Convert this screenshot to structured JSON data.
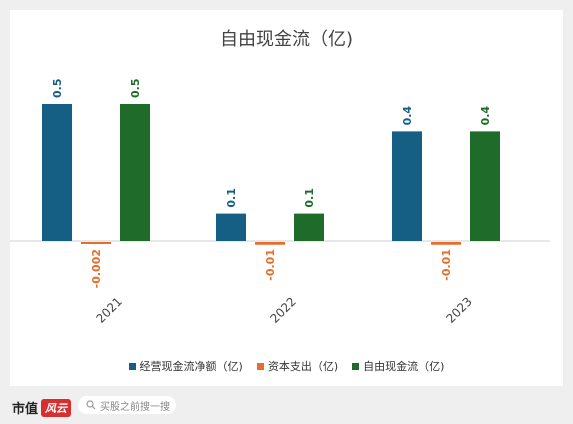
{
  "chart_data": {
    "type": "bar",
    "title": "自由现金流（亿)",
    "categories": [
      "2021",
      "2022",
      "2023"
    ],
    "series": [
      {
        "name": "经营现金流净额（亿)",
        "color": "#155e84",
        "values": [
          0.5,
          0.1,
          0.4
        ],
        "labels": [
          "0.5",
          "0.1",
          "0.4"
        ]
      },
      {
        "name": "资本支出（亿)",
        "color": "#e36e2d",
        "values": [
          -0.002,
          -0.01,
          -0.01
        ],
        "labels": [
          "-0.002",
          "-0.01",
          "-0.01"
        ]
      },
      {
        "name": "自由现金流（亿)",
        "color": "#1e6b2a",
        "values": [
          0.5,
          0.1,
          0.4
        ],
        "labels": [
          "0.5",
          "0.1",
          "0.4"
        ]
      }
    ],
    "label_colors": [
      "#155e84",
      "#e36e2d",
      "#1e6b2a"
    ],
    "grid": false,
    "legend": "bottom"
  },
  "footer": {
    "brand": "市值",
    "brand_mark": "风云",
    "search_placeholder": "买股之前搜一搜"
  }
}
